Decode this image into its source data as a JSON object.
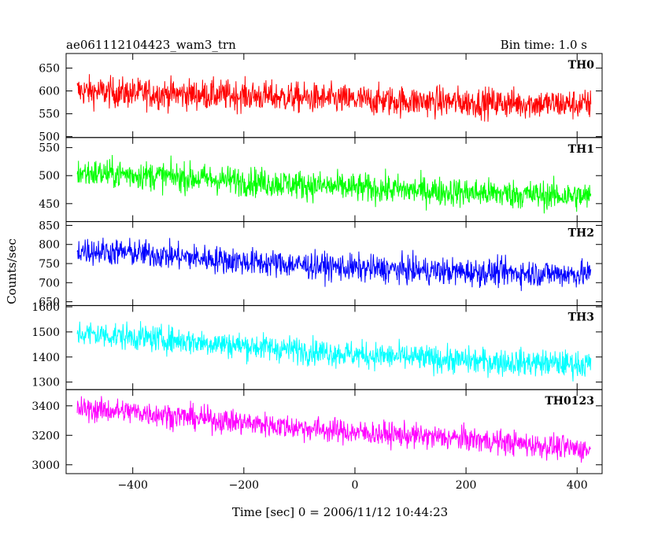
{
  "title_left": "ae061112104423_wam3_trn",
  "title_right": "Bin time: 1.0 s",
  "ylabel": "Counts/sec",
  "xlabel": "Time [sec] 0 = 2006/11/12 10:44:23",
  "chart_data": {
    "type": "line",
    "x_range": [
      -500,
      425
    ],
    "xlim": [
      -520,
      445
    ],
    "x_ticks": [
      -400,
      -200,
      0,
      200,
      400
    ],
    "x_tick_labels": [
      "−400",
      "−200",
      "0",
      "200",
      "400"
    ],
    "panels": [
      {
        "name": "TH0",
        "color": "#ff0000",
        "ylim": [
          498,
          682
        ],
        "y_ticks": [
          500,
          550,
          600,
          650
        ],
        "trend": [
          {
            "x": -500,
            "y": 600
          },
          {
            "x": -400,
            "y": 595
          },
          {
            "x": -200,
            "y": 590
          },
          {
            "x": 0,
            "y": 580
          },
          {
            "x": 200,
            "y": 575
          },
          {
            "x": 425,
            "y": 570
          }
        ],
        "noise": 28
      },
      {
        "name": "TH1",
        "color": "#00ff00",
        "ylim": [
          418,
          568
        ],
        "y_ticks": [
          450,
          500,
          550
        ],
        "trend": [
          {
            "x": -500,
            "y": 505
          },
          {
            "x": -400,
            "y": 502
          },
          {
            "x": -200,
            "y": 490
          },
          {
            "x": 0,
            "y": 478
          },
          {
            "x": 200,
            "y": 470
          },
          {
            "x": 425,
            "y": 462
          }
        ],
        "noise": 22
      },
      {
        "name": "TH2",
        "color": "#0000ff",
        "ylim": [
          640,
          860
        ],
        "y_ticks": [
          650,
          700,
          750,
          800,
          850
        ],
        "trend": [
          {
            "x": -500,
            "y": 785
          },
          {
            "x": -400,
            "y": 778
          },
          {
            "x": -200,
            "y": 755
          },
          {
            "x": 0,
            "y": 738
          },
          {
            "x": 200,
            "y": 728
          },
          {
            "x": 425,
            "y": 722
          }
        ],
        "noise": 30
      },
      {
        "name": "TH3",
        "color": "#00ffff",
        "ylim": [
          1270,
          1605
        ],
        "y_ticks": [
          1300,
          1400,
          1500,
          1600
        ],
        "trend": [
          {
            "x": -500,
            "y": 1495
          },
          {
            "x": -400,
            "y": 1480
          },
          {
            "x": -200,
            "y": 1445
          },
          {
            "x": 0,
            "y": 1410
          },
          {
            "x": 200,
            "y": 1385
          },
          {
            "x": 425,
            "y": 1370
          }
        ],
        "noise": 45
      },
      {
        "name": "TH0123",
        "color": "#ff00ff",
        "ylim": [
          2940,
          3510
        ],
        "y_ticks": [
          3000,
          3200,
          3400
        ],
        "trend": [
          {
            "x": -500,
            "y": 3380
          },
          {
            "x": -400,
            "y": 3360
          },
          {
            "x": -200,
            "y": 3285
          },
          {
            "x": 0,
            "y": 3220
          },
          {
            "x": 200,
            "y": 3175
          },
          {
            "x": 425,
            "y": 3100
          }
        ],
        "noise": 70
      }
    ]
  }
}
